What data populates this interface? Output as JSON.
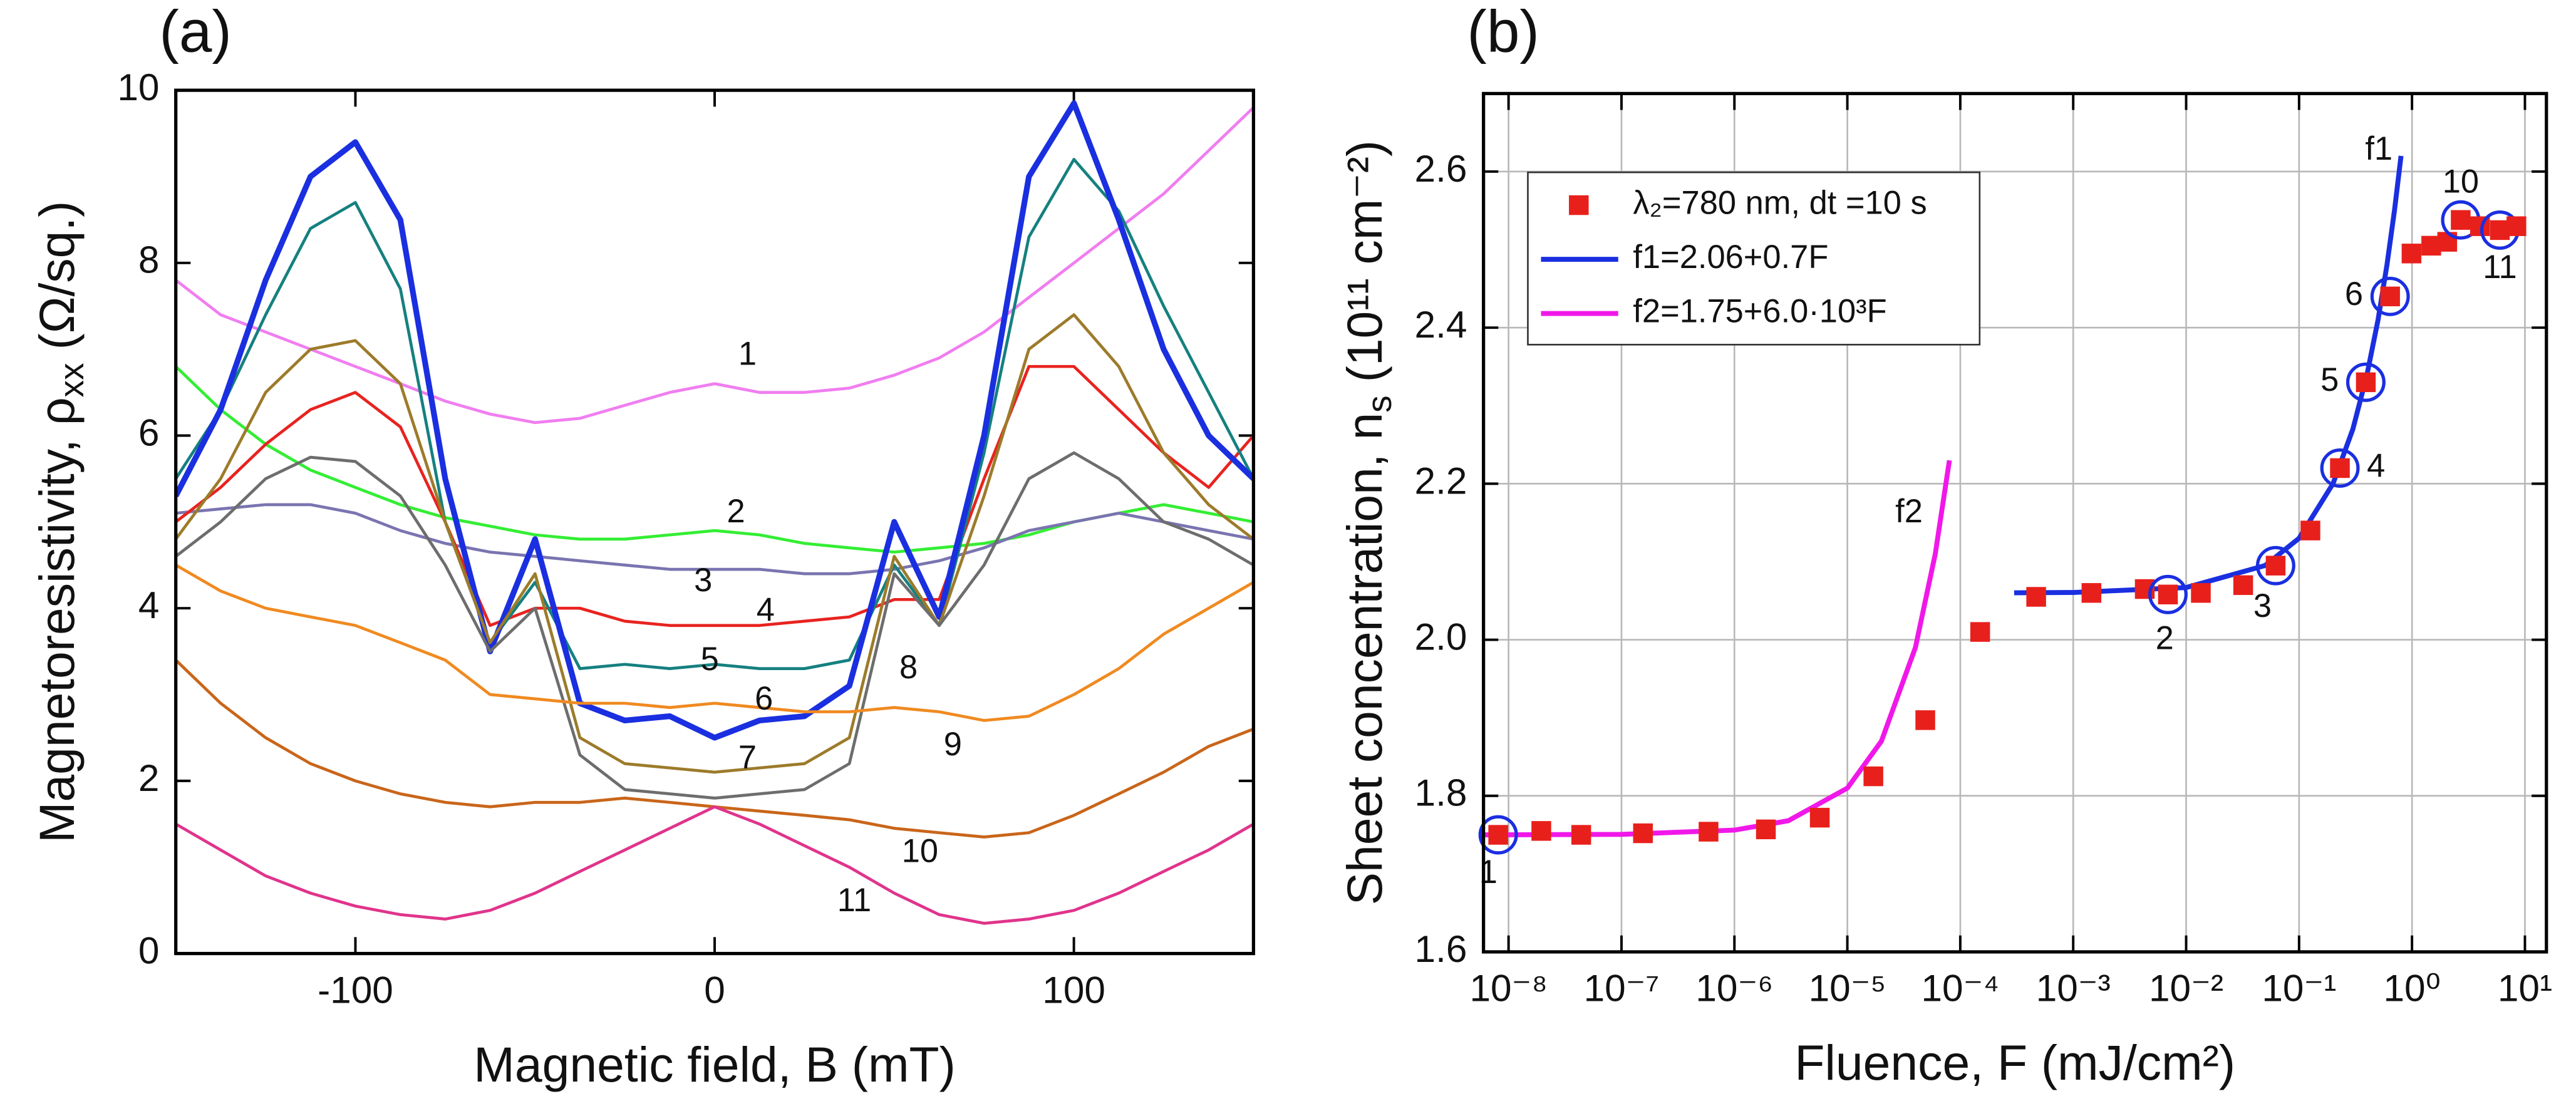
{
  "chart_data": [
    {
      "type": "line",
      "panel_label": "(a)",
      "xlabel": "Magnetic field, B (mT)",
      "ylabel": {
        "text": "Magnetoresistivity, ρ",
        "sub": "xx",
        "unit": "(Ω/sq.)"
      },
      "xlim": [
        -150,
        150
      ],
      "xticks": [
        -100,
        0,
        100
      ],
      "ylim": [
        0,
        10
      ],
      "yticks": [
        0,
        2,
        4,
        6,
        8,
        10
      ],
      "grid": false,
      "x": [
        -150,
        -137.5,
        -125,
        -112.5,
        -100,
        -87.5,
        -75,
        -62.5,
        -50,
        -37.5,
        -25,
        -12.5,
        0,
        12.5,
        25,
        37.5,
        50,
        62.5,
        75,
        87.5,
        100,
        112.5,
        125,
        137.5,
        150
      ],
      "series": [
        {
          "name": "1",
          "color": "#f07ef0",
          "values": [
            7.8,
            7.4,
            7.2,
            7.0,
            6.8,
            6.6,
            6.4,
            6.25,
            6.15,
            6.2,
            6.35,
            6.5,
            6.6,
            6.5,
            6.5,
            6.55,
            6.7,
            6.9,
            7.2,
            7.6,
            8.0,
            8.4,
            8.8,
            9.3,
            9.8
          ]
        },
        {
          "name": "2",
          "color": "#33ee33",
          "values": [
            6.8,
            6.3,
            5.9,
            5.6,
            5.4,
            5.2,
            5.05,
            4.95,
            4.85,
            4.8,
            4.8,
            4.85,
            4.9,
            4.85,
            4.75,
            4.7,
            4.65,
            4.7,
            4.75,
            4.85,
            5.0,
            5.1,
            5.2,
            5.1,
            5.0
          ]
        },
        {
          "name": "3",
          "color": "#7a74b0",
          "values": [
            5.1,
            5.15,
            5.2,
            5.2,
            5.1,
            4.9,
            4.75,
            4.65,
            4.6,
            4.55,
            4.5,
            4.45,
            4.45,
            4.45,
            4.4,
            4.4,
            4.45,
            4.55,
            4.7,
            4.9,
            5.0,
            5.1,
            5.0,
            4.9,
            4.8
          ]
        },
        {
          "name": "4",
          "color": "#e8231f",
          "values": [
            5.0,
            5.4,
            5.9,
            6.3,
            6.5,
            6.1,
            5.0,
            3.8,
            4.0,
            4.0,
            3.85,
            3.8,
            3.8,
            3.8,
            3.85,
            3.9,
            4.1,
            4.1,
            5.5,
            6.8,
            6.8,
            6.3,
            5.8,
            5.4,
            6.0
          ]
        },
        {
          "name": "5",
          "color": "#168080",
          "values": [
            5.5,
            6.3,
            7.4,
            8.4,
            8.7,
            7.7,
            5.0,
            3.6,
            4.3,
            3.3,
            3.35,
            3.3,
            3.35,
            3.3,
            3.3,
            3.4,
            4.5,
            3.8,
            5.8,
            8.3,
            9.2,
            8.6,
            7.5,
            6.5,
            5.5
          ]
        },
        {
          "name": "6",
          "color": "#1a2fe0",
          "line_width": 3.5,
          "values": [
            5.3,
            6.3,
            7.8,
            9.0,
            9.4,
            8.5,
            5.5,
            3.5,
            4.8,
            2.9,
            2.7,
            2.75,
            2.5,
            2.7,
            2.75,
            3.1,
            5.0,
            3.9,
            6.0,
            9.0,
            9.85,
            8.5,
            7.0,
            6.0,
            5.5
          ]
        },
        {
          "name": "7",
          "color": "#9c7b2a",
          "values": [
            4.8,
            5.5,
            6.5,
            7.0,
            7.1,
            6.6,
            5.0,
            3.6,
            4.4,
            2.5,
            2.2,
            2.15,
            2.1,
            2.15,
            2.2,
            2.5,
            4.6,
            3.8,
            5.3,
            7.0,
            7.4,
            6.8,
            5.8,
            5.2,
            4.8
          ]
        },
        {
          "name": "8",
          "color": "#6d6d6d",
          "values": [
            4.6,
            5.0,
            5.5,
            5.75,
            5.7,
            5.3,
            4.5,
            3.5,
            4.0,
            2.3,
            1.9,
            1.85,
            1.8,
            1.85,
            1.9,
            2.2,
            4.4,
            3.8,
            4.5,
            5.5,
            5.8,
            5.5,
            5.0,
            4.8,
            4.5
          ]
        },
        {
          "name": "9",
          "color": "#f08a20",
          "values": [
            4.5,
            4.2,
            4.0,
            3.9,
            3.8,
            3.6,
            3.4,
            3.0,
            2.95,
            2.9,
            2.9,
            2.85,
            2.9,
            2.85,
            2.8,
            2.8,
            2.85,
            2.8,
            2.7,
            2.75,
            3.0,
            3.3,
            3.7,
            4.0,
            4.3
          ]
        },
        {
          "name": "10",
          "color": "#c9651a",
          "values": [
            3.4,
            2.9,
            2.5,
            2.2,
            2.0,
            1.85,
            1.75,
            1.7,
            1.75,
            1.75,
            1.8,
            1.75,
            1.7,
            1.65,
            1.6,
            1.55,
            1.45,
            1.4,
            1.35,
            1.4,
            1.6,
            1.85,
            2.1,
            2.4,
            2.6
          ]
        },
        {
          "name": "11",
          "color": "#e0348c",
          "values": [
            1.5,
            1.2,
            0.9,
            0.7,
            0.55,
            0.45,
            0.4,
            0.5,
            0.7,
            0.95,
            1.2,
            1.45,
            1.7,
            1.5,
            1.25,
            1.0,
            0.7,
            0.45,
            0.35,
            0.4,
            0.5,
            0.7,
            0.95,
            1.2,
            1.5
          ]
        }
      ]
    },
    {
      "type": "scatter",
      "panel_label": "(b)",
      "xscale": "log",
      "grid": true,
      "xlabel": "Fluence, F (mJ/cm²)",
      "ylabel": {
        "text": "Sheet concentration, n",
        "sub": "s",
        "unit": "(10¹¹ cm⁻²)"
      },
      "xlim": [
        6e-09,
        15.5
      ],
      "xticks": [
        {
          "value": 1e-08,
          "label": "10⁻⁸"
        },
        {
          "value": 1e-07,
          "label": "10⁻⁷"
        },
        {
          "value": 1e-06,
          "label": "10⁻⁶"
        },
        {
          "value": 1e-05,
          "label": "10⁻⁵"
        },
        {
          "value": 0.0001,
          "label": "10⁻⁴"
        },
        {
          "value": 0.001,
          "label": "10⁻³"
        },
        {
          "value": 0.01,
          "label": "10⁻²"
        },
        {
          "value": 0.1,
          "label": "10⁻¹"
        },
        {
          "value": 1,
          "label": "10⁰"
        },
        {
          "value": 10,
          "label": "10¹"
        }
      ],
      "ylim": [
        1.6,
        2.7
      ],
      "yticks": [
        {
          "value": 1.6,
          "label": "1.6"
        },
        {
          "value": 1.8,
          "label": "1.8"
        },
        {
          "value": 2.0,
          "label": "2.0"
        },
        {
          "value": 2.2,
          "label": "2.2"
        },
        {
          "value": 2.4,
          "label": "2.4"
        },
        {
          "value": 2.6,
          "label": "2.6"
        }
      ],
      "legend": "upper left",
      "series": [
        {
          "name": "λ₂=780 nm, dt =10 s",
          "mode": "markers",
          "color": "#e8201c",
          "x": [
            8.1e-09,
            1.95e-08,
            4.4e-08,
            1.55e-07,
            5.9e-07,
            1.9e-06,
            5.7e-06,
            1.7e-05,
            4.9e-05,
            0.00015,
            0.00047,
            0.00145,
            0.0043,
            0.0069,
            0.0135,
            0.032,
            0.062,
            0.126,
            0.23,
            0.39,
            0.64,
            0.99,
            1.48,
            2.05,
            2.7,
            4.0,
            6.0,
            8.4
          ],
          "values": [
            1.75,
            1.755,
            1.75,
            1.752,
            1.754,
            1.757,
            1.772,
            1.825,
            1.897,
            2.01,
            2.055,
            2.06,
            2.065,
            2.058,
            2.06,
            2.07,
            2.095,
            2.14,
            2.22,
            2.33,
            2.44,
            2.495,
            2.505,
            2.51,
            2.538,
            2.53,
            2.525,
            2.53
          ],
          "point_labels": [
            "1",
            null,
            null,
            null,
            null,
            null,
            null,
            null,
            null,
            null,
            null,
            null,
            null,
            "2",
            null,
            null,
            "3",
            null,
            "4",
            "5",
            "6",
            null,
            null,
            null,
            "10",
            null,
            "11",
            null
          ]
        },
        {
          "name": "f1=2.06+0.7F",
          "mode": "line",
          "color": "#1a2fe0",
          "curve_label": "f1",
          "x": [
            0.0003,
            0.001,
            0.01,
            0.05,
            0.1,
            0.2,
            0.3,
            0.4,
            0.5,
            0.6,
            0.7,
            0.8
          ],
          "values": [
            2.0602,
            2.0607,
            2.067,
            2.095,
            2.13,
            2.2,
            2.27,
            2.34,
            2.41,
            2.48,
            2.55,
            2.62
          ]
        },
        {
          "name": "f2=1.75+6.0·10³F",
          "mode": "line",
          "color": "#f018e8",
          "curve_label": "f2",
          "x": [
            6e-09,
            1e-07,
            1e-06,
            3e-06,
            1e-05,
            2e-05,
            4e-05,
            6e-05,
            8e-05
          ],
          "values": [
            1.75,
            1.7506,
            1.756,
            1.768,
            1.81,
            1.87,
            1.99,
            2.11,
            2.23
          ]
        }
      ]
    }
  ]
}
